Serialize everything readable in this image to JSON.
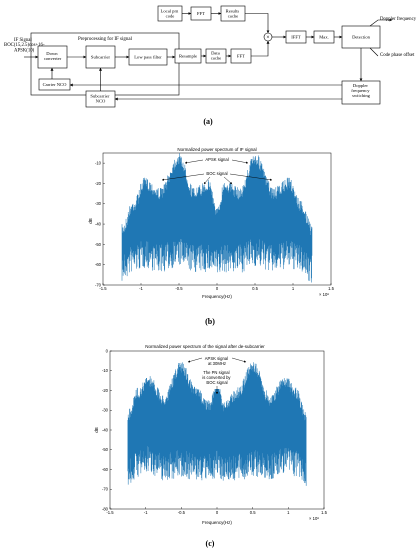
{
  "diagram": {
    "input_signal": [
      "IF Signal",
      "BOC(15,2.5)cos+16-",
      "APSK(10)"
    ],
    "preprocessing_title": "Preprocessing for IF signal",
    "local_prn": [
      "Local prn",
      "code"
    ],
    "fft": "FFT",
    "results_cache": [
      "Results",
      "cache"
    ],
    "ifft": "IFFT",
    "max": "Max.",
    "detection": "Detection",
    "doppler_frequency": "Doppler frequency",
    "code_phase_offset": "Code phase offset",
    "down_converter": [
      "Down",
      "converter"
    ],
    "subcarrier": "Subcarrier",
    "low_pass_filter": "Low pass filter",
    "resample": "Resample",
    "data_cache": [
      "Data",
      "cache"
    ],
    "carrier_nco": "Carrier NCO",
    "subcarrier_nco": [
      "Subcarrier",
      "NCO"
    ],
    "doppler_switching": [
      "Doppler",
      "frequency",
      "switching"
    ],
    "multiply_symbol": "×",
    "caption": "(a)"
  },
  "charts": [
    {
      "title": "Normalized power spectrum of IF signal",
      "ylabel": "dB",
      "xlabel": "Frequency(Hz)",
      "x_exponent": "× 10⁸",
      "yticks": [
        "-10",
        "-20",
        "-30",
        "-40",
        "-50",
        "-60",
        "-70"
      ],
      "xticks": [
        "-1.5",
        "-1",
        "-0.5",
        "0",
        "0.5",
        "1",
        "1.5"
      ],
      "annotations": [
        "APSK signal",
        "BOC signal"
      ],
      "caption": "(b)"
    },
    {
      "title": "Normalized power spectrum of the signal after de-subcarrier",
      "ylabel": "dB",
      "xlabel": "Frequency(Hz)",
      "x_exponent": "× 10⁸",
      "yticks": [
        "0",
        "-10",
        "-20",
        "-30",
        "-40",
        "-50",
        "-60",
        "-70",
        "-80"
      ],
      "xticks": [
        "-1.5",
        "-1",
        "-0.5",
        "0",
        "0.5",
        "1",
        "1.5"
      ],
      "annotations": [
        "APSK signal",
        "at 30MHz",
        "The PN signal",
        "is converted by",
        "BOC signal"
      ],
      "caption": "(c)"
    }
  ],
  "chart_data": [
    {
      "type": "area",
      "title": "Normalized power spectrum of IF signal",
      "xlabel": "Frequency(Hz)",
      "ylabel": "dB",
      "xlim": [
        -150000000.0,
        150000000.0
      ],
      "ylim": [
        -70,
        -5
      ],
      "color": "#1f77b4",
      "x": [
        -125000000.0,
        -110000000.0,
        -95000000.0,
        -75000000.0,
        -50000000.0,
        -30000000.0,
        -10000000.0,
        0,
        10000000.0,
        30000000.0,
        50000000.0,
        75000000.0,
        95000000.0,
        110000000.0,
        125000000.0
      ],
      "peak_db": [
        -40,
        -28,
        -17,
        -22,
        -5,
        -22,
        -18,
        -32,
        -18,
        -22,
        -5,
        -22,
        -17,
        -28,
        -40
      ],
      "floor_db": [
        -55,
        -50,
        -48,
        -50,
        -47,
        -50,
        -50,
        -52,
        -50,
        -50,
        -47,
        -50,
        -48,
        -50,
        -55
      ]
    },
    {
      "type": "area",
      "title": "Normalized power spectrum of the signal after de-subcarrier",
      "xlabel": "Frequency(Hz)",
      "ylabel": "dB",
      "xlim": [
        -150000000.0,
        150000000.0
      ],
      "ylim": [
        -80,
        0
      ],
      "color": "#1f77b4",
      "x": [
        -125000000.0,
        -110000000.0,
        -95000000.0,
        -75000000.0,
        -50000000.0,
        -30000000.0,
        -10000000.0,
        0,
        10000000.0,
        30000000.0,
        50000000.0,
        75000000.0,
        95000000.0,
        110000000.0,
        125000000.0
      ],
      "peak_db": [
        -30,
        -18,
        -12,
        -22,
        -5,
        -18,
        -25,
        -13,
        -25,
        -18,
        -5,
        -22,
        -12,
        -18,
        -30
      ],
      "floor_db": [
        -55,
        -50,
        -48,
        -52,
        -50,
        -52,
        -52,
        -50,
        -52,
        -52,
        -50,
        -52,
        -48,
        -50,
        -55
      ]
    }
  ]
}
